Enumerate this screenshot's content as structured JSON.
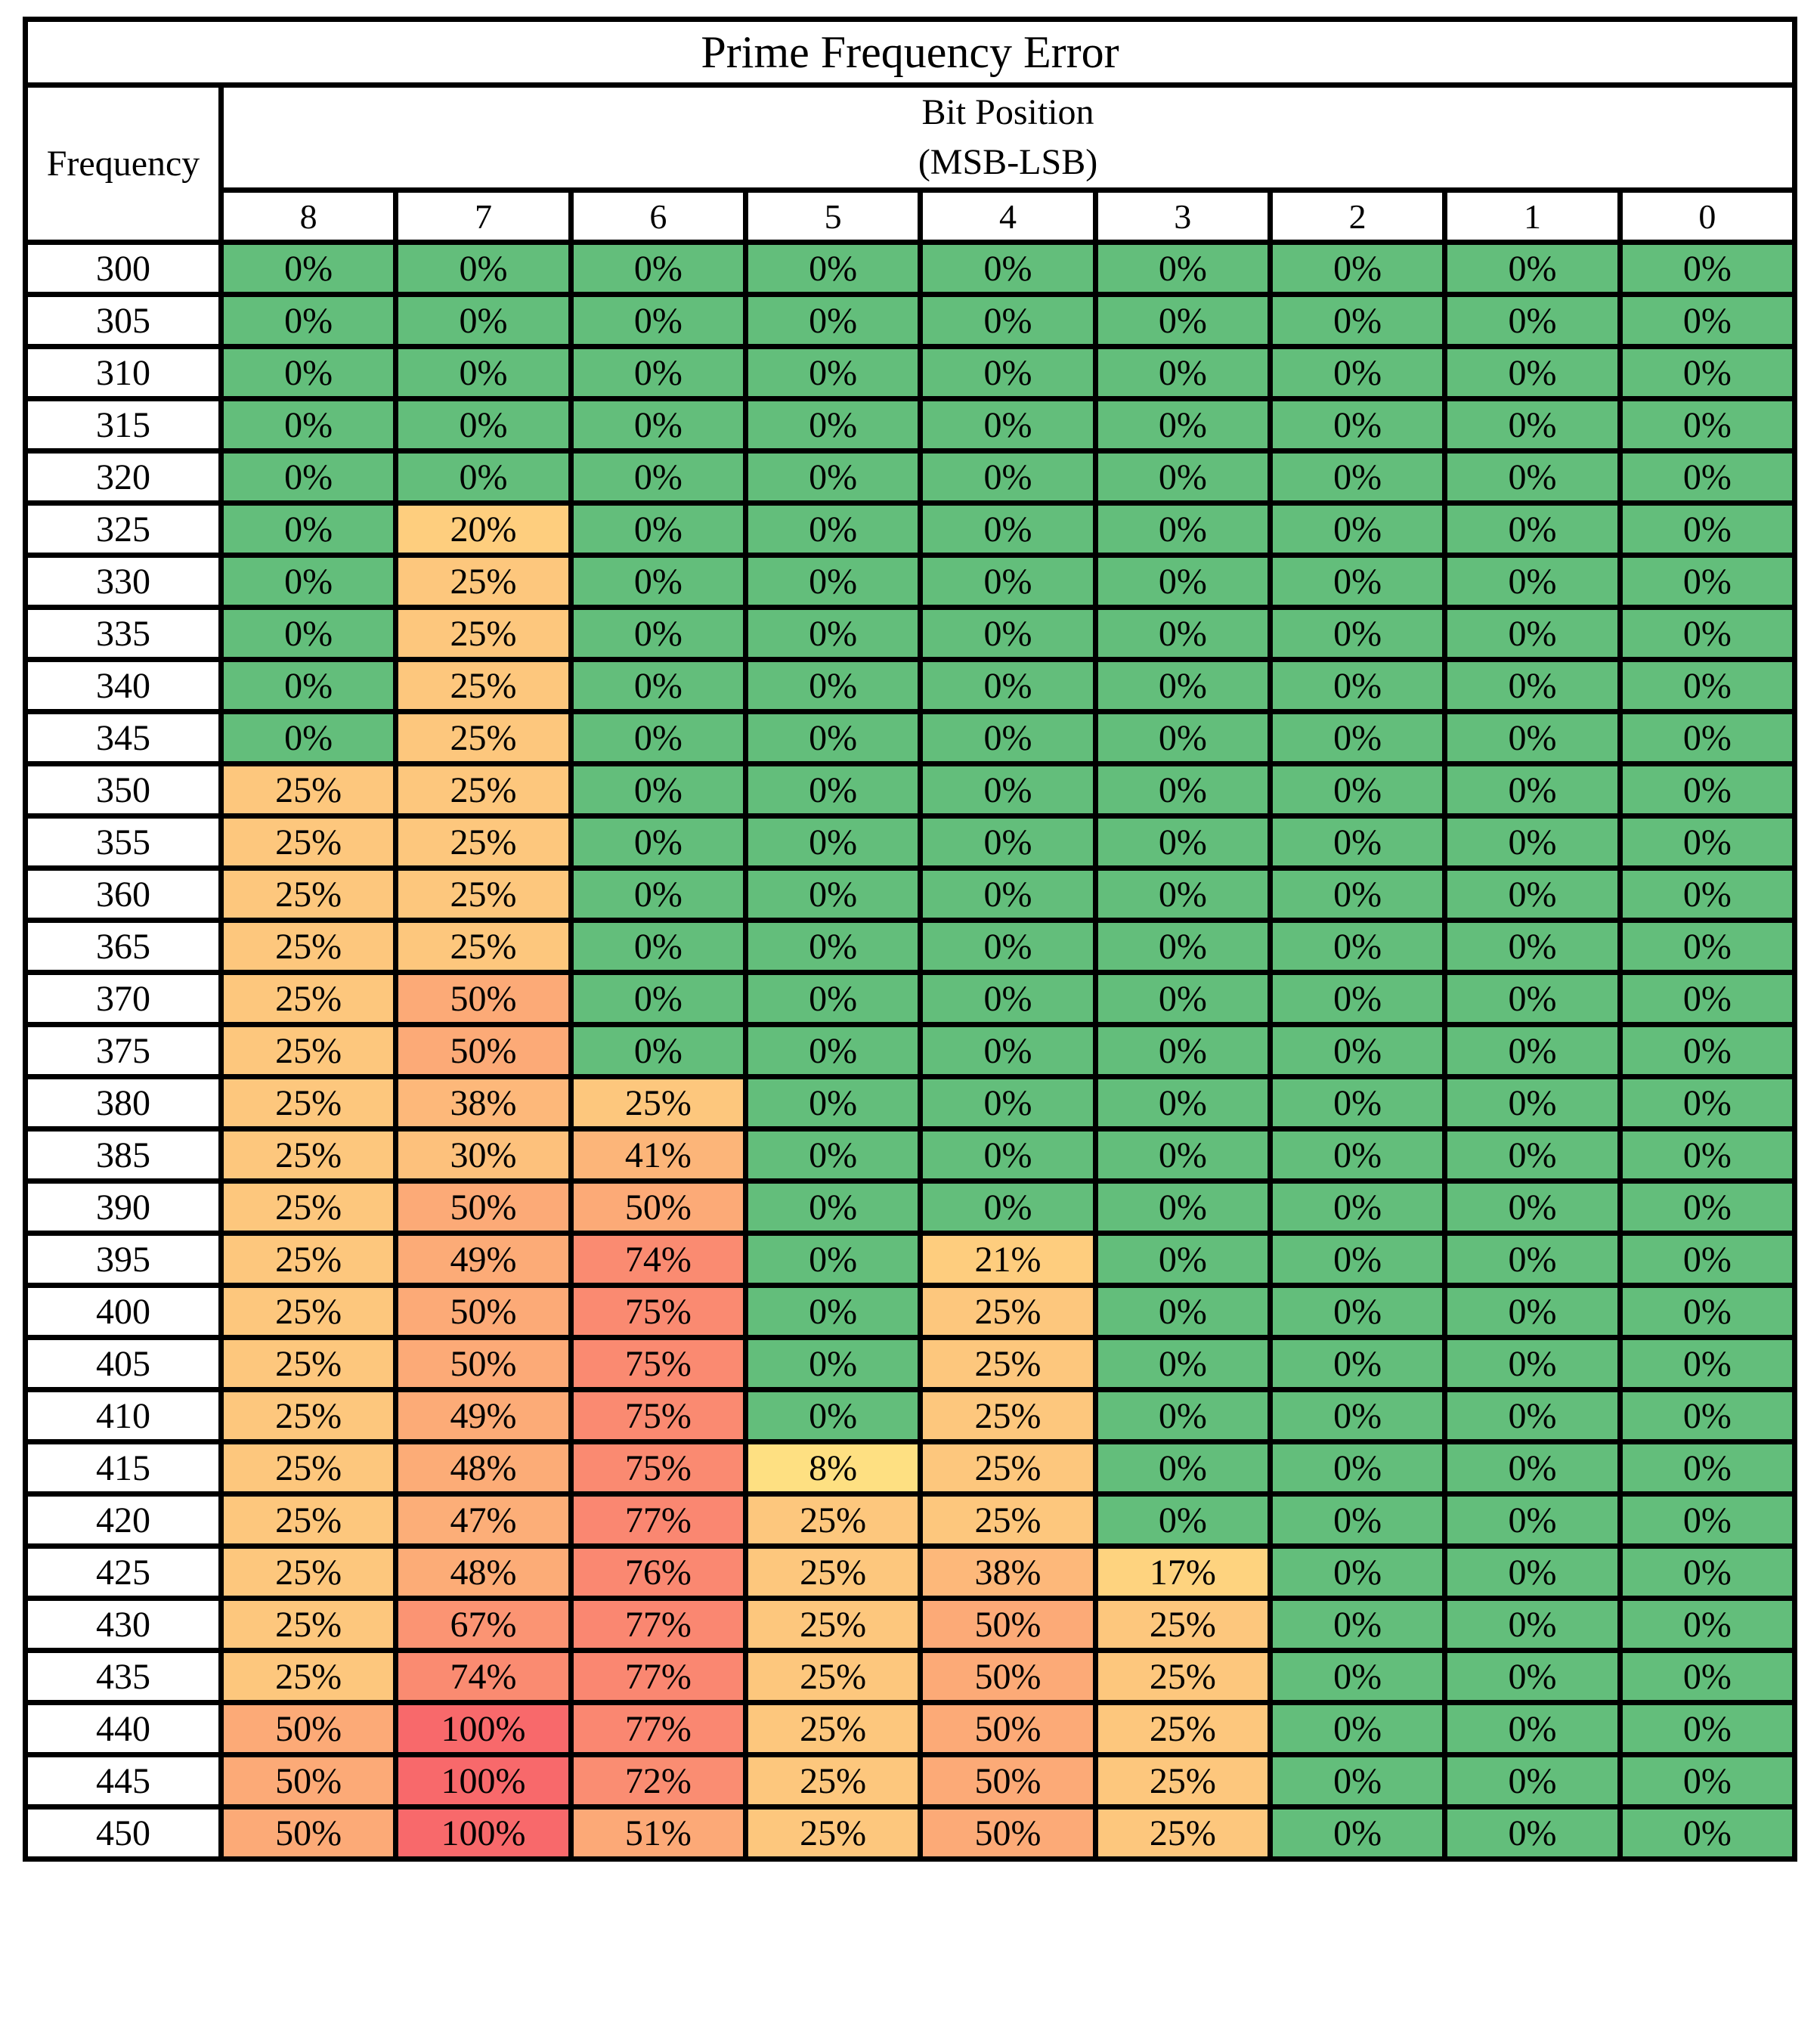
{
  "chart_data": {
    "type": "heatmap",
    "title": "Prime Frequency Error",
    "row_header": "Frequency",
    "column_group_header_line1": "Bit Position",
    "column_group_header_line2": "(MSB-LSB)",
    "columns": [
      "8",
      "7",
      "6",
      "5",
      "4",
      "3",
      "2",
      "1",
      "0"
    ],
    "rows": [
      "300",
      "305",
      "310",
      "315",
      "320",
      "325",
      "330",
      "335",
      "340",
      "345",
      "350",
      "355",
      "360",
      "365",
      "370",
      "375",
      "380",
      "385",
      "390",
      "395",
      "400",
      "405",
      "410",
      "415",
      "420",
      "425",
      "430",
      "435",
      "440",
      "445",
      "450"
    ],
    "values": [
      [
        0,
        0,
        0,
        0,
        0,
        0,
        0,
        0,
        0
      ],
      [
        0,
        0,
        0,
        0,
        0,
        0,
        0,
        0,
        0
      ],
      [
        0,
        0,
        0,
        0,
        0,
        0,
        0,
        0,
        0
      ],
      [
        0,
        0,
        0,
        0,
        0,
        0,
        0,
        0,
        0
      ],
      [
        0,
        0,
        0,
        0,
        0,
        0,
        0,
        0,
        0
      ],
      [
        0,
        20,
        0,
        0,
        0,
        0,
        0,
        0,
        0
      ],
      [
        0,
        25,
        0,
        0,
        0,
        0,
        0,
        0,
        0
      ],
      [
        0,
        25,
        0,
        0,
        0,
        0,
        0,
        0,
        0
      ],
      [
        0,
        25,
        0,
        0,
        0,
        0,
        0,
        0,
        0
      ],
      [
        0,
        25,
        0,
        0,
        0,
        0,
        0,
        0,
        0
      ],
      [
        25,
        25,
        0,
        0,
        0,
        0,
        0,
        0,
        0
      ],
      [
        25,
        25,
        0,
        0,
        0,
        0,
        0,
        0,
        0
      ],
      [
        25,
        25,
        0,
        0,
        0,
        0,
        0,
        0,
        0
      ],
      [
        25,
        25,
        0,
        0,
        0,
        0,
        0,
        0,
        0
      ],
      [
        25,
        50,
        0,
        0,
        0,
        0,
        0,
        0,
        0
      ],
      [
        25,
        50,
        0,
        0,
        0,
        0,
        0,
        0,
        0
      ],
      [
        25,
        38,
        25,
        0,
        0,
        0,
        0,
        0,
        0
      ],
      [
        25,
        30,
        41,
        0,
        0,
        0,
        0,
        0,
        0
      ],
      [
        25,
        50,
        50,
        0,
        0,
        0,
        0,
        0,
        0
      ],
      [
        25,
        49,
        74,
        0,
        21,
        0,
        0,
        0,
        0
      ],
      [
        25,
        50,
        75,
        0,
        25,
        0,
        0,
        0,
        0
      ],
      [
        25,
        50,
        75,
        0,
        25,
        0,
        0,
        0,
        0
      ],
      [
        25,
        49,
        75,
        0,
        25,
        0,
        0,
        0,
        0
      ],
      [
        25,
        48,
        75,
        8,
        25,
        0,
        0,
        0,
        0
      ],
      [
        25,
        47,
        77,
        25,
        25,
        0,
        0,
        0,
        0
      ],
      [
        25,
        48,
        76,
        25,
        38,
        17,
        0,
        0,
        0
      ],
      [
        25,
        67,
        77,
        25,
        50,
        25,
        0,
        0,
        0
      ],
      [
        25,
        74,
        77,
        25,
        50,
        25,
        0,
        0,
        0
      ],
      [
        50,
        100,
        77,
        25,
        50,
        25,
        0,
        0,
        0
      ],
      [
        50,
        100,
        72,
        25,
        50,
        25,
        0,
        0,
        0
      ],
      [
        50,
        100,
        51,
        25,
        50,
        25,
        0,
        0,
        0
      ]
    ],
    "value_suffix": "%",
    "colors": {
      "zero": "#63be7b",
      "low": "#ffeb84",
      "mid": "#fcaa77",
      "high": "#f8696b"
    }
  }
}
